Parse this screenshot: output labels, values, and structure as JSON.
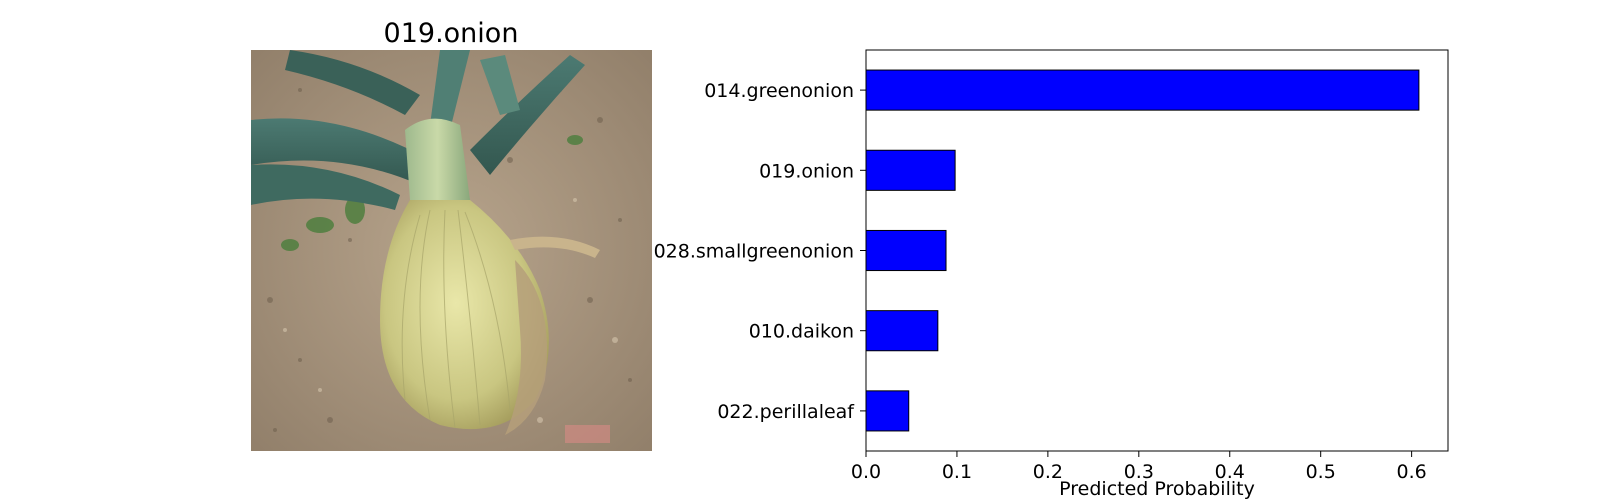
{
  "image_panel": {
    "title": "019.onion",
    "photo_description_icon": "onion-photo"
  },
  "colors": {
    "bar_fill": "#0000ff",
    "bar_stroke": "#000000",
    "axis": "#000000",
    "background": "#ffffff"
  },
  "chart_data": {
    "type": "bar",
    "orientation": "horizontal",
    "categories": [
      "014.greenonion",
      "019.onion",
      "028.smallgreenonion",
      "010.daikon",
      "022.perillaleaf"
    ],
    "values": [
      0.608,
      0.098,
      0.088,
      0.079,
      0.047
    ],
    "xlabel": "Predicted Probability",
    "xlim": [
      0,
      0.64
    ],
    "xticks": [
      0.0,
      0.1,
      0.2,
      0.3,
      0.4,
      0.5,
      0.6
    ],
    "xtick_labels": [
      "0.0",
      "0.1",
      "0.2",
      "0.3",
      "0.4",
      "0.5",
      "0.6"
    ],
    "grid": false,
    "legend": "none"
  }
}
